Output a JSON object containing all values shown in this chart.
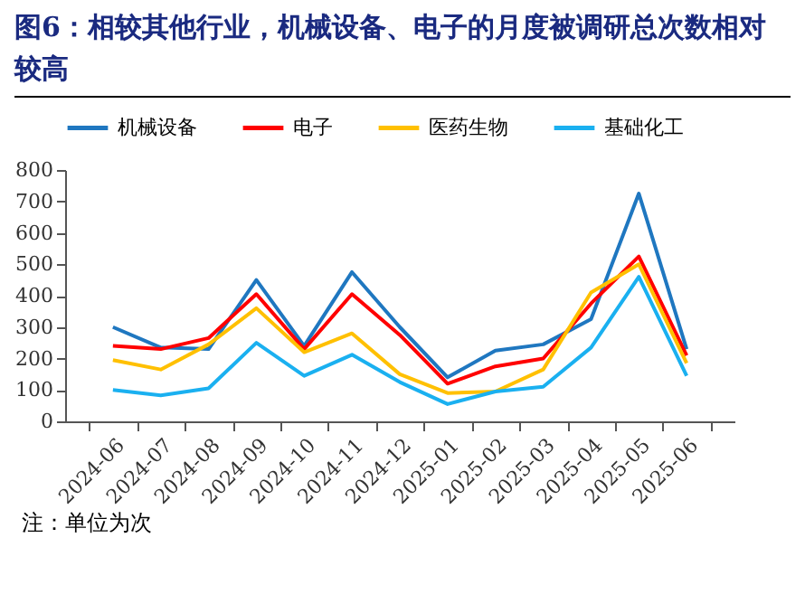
{
  "chart_data": {
    "type": "line",
    "title": "图6：相较其他行业，机械设备、电子的月度被调研总次数相对较高",
    "categories": [
      "2024-06",
      "2024-07",
      "2024-08",
      "2024-09",
      "2024-10",
      "2024-11",
      "2024-12",
      "2025-01",
      "2025-02",
      "2025-03",
      "2025-04",
      "2025-05",
      "2025-06"
    ],
    "series": [
      {
        "name": "机械设备",
        "color": "#1f77c0",
        "values": [
          300,
          235,
          230,
          450,
          240,
          475,
          300,
          140,
          225,
          245,
          325,
          725,
          230
        ]
      },
      {
        "name": "电子",
        "color": "#ff0000",
        "values": [
          240,
          230,
          265,
          405,
          230,
          405,
          275,
          120,
          175,
          200,
          375,
          525,
          210
        ]
      },
      {
        "name": "医药生物",
        "color": "#ffc000",
        "values": [
          195,
          165,
          245,
          360,
          220,
          280,
          150,
          90,
          95,
          165,
          410,
          500,
          185
        ]
      },
      {
        "name": "基础化工",
        "color": "#1ab0f0",
        "values": [
          100,
          83,
          105,
          250,
          145,
          212,
          125,
          55,
          95,
          110,
          235,
          460,
          145
        ]
      }
    ],
    "ylim": [
      0,
      800
    ],
    "yticks": [
      0,
      100,
      200,
      300,
      400,
      500,
      600,
      700,
      800
    ],
    "grid": false,
    "legend": "top",
    "marker": "none",
    "line_style": "solid",
    "annotations": [
      "注：单位为次"
    ]
  }
}
